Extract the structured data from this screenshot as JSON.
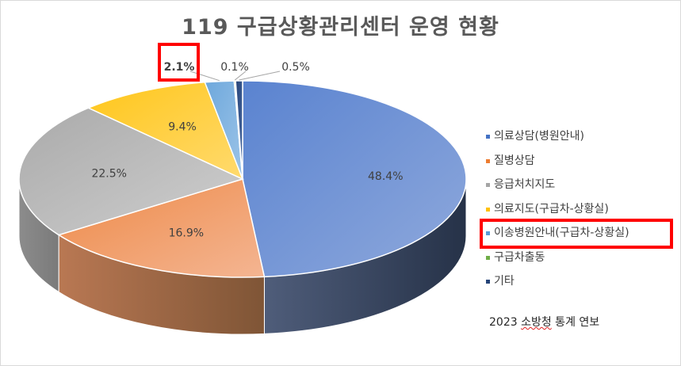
{
  "chart_data": {
    "type": "pie",
    "title": "119 구급상황관리센터 운영 현황",
    "categories": [
      "의료상담(병원안내)",
      "질병상담",
      "응급처치지도",
      "의료지도(구급차-상황실)",
      "이송병원안내(구급차-상황실)",
      "구급차출동",
      "기타"
    ],
    "values": [
      48.4,
      16.9,
      22.5,
      9.4,
      2.1,
      0.1,
      0.5
    ],
    "data_labels": [
      "48.4%",
      "16.9%",
      "22.5%",
      "9.4%",
      "2.1%",
      "0.1%",
      "0.5%"
    ],
    "colors": [
      "#4472c4",
      "#ed7d31",
      "#a5a5a5",
      "#ffc000",
      "#5b9bd5",
      "#70ad47",
      "#264478"
    ],
    "legend_position": "right",
    "highlighted": [
      "2.1%",
      "이송병원안내(구급차-상황실)"
    ]
  },
  "source_note": {
    "prefix": "2023 ",
    "underlined": "소방청",
    "suffix": " 통계 연보"
  }
}
